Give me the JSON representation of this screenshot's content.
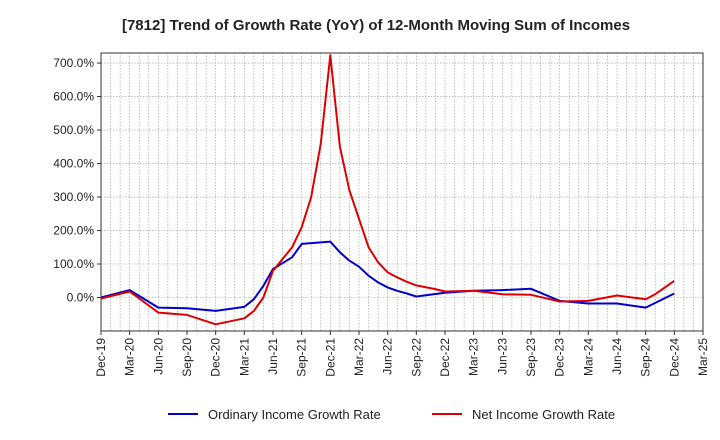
{
  "chart_data": {
    "type": "line",
    "title": "[7812]  Trend of Growth Rate (YoY) of 12-Month Moving Sum of Incomes",
    "xlabel": "",
    "ylabel": "",
    "x_ticks": [
      "Dec-19",
      "Mar-20",
      "Jun-20",
      "Sep-20",
      "Dec-20",
      "Mar-21",
      "Jun-21",
      "Sep-21",
      "Dec-21",
      "Mar-22",
      "Jun-22",
      "Sep-22",
      "Dec-22",
      "Mar-23",
      "Jun-23",
      "Sep-23",
      "Dec-23",
      "Mar-24",
      "Jun-24",
      "Sep-24",
      "Dec-24",
      "Mar-25"
    ],
    "y_ticks": [
      0,
      100,
      200,
      300,
      400,
      500,
      600,
      700
    ],
    "y_tick_labels": [
      "0.0%",
      "100.0%",
      "200.0%",
      "300.0%",
      "400.0%",
      "500.0%",
      "600.0%",
      "700.0%"
    ],
    "xlim": [
      0,
      63
    ],
    "ylim": [
      -100,
      730
    ],
    "grid": true,
    "legend_position": "bottom",
    "series": [
      {
        "name": "Ordinary Income Growth Rate",
        "color": "#0000cc",
        "points": [
          [
            0,
            0
          ],
          [
            3,
            22
          ],
          [
            6,
            -30
          ],
          [
            9,
            -32
          ],
          [
            12,
            -40
          ],
          [
            15,
            -28
          ],
          [
            16,
            -5
          ],
          [
            17,
            35
          ],
          [
            18,
            85
          ],
          [
            20,
            120
          ],
          [
            21,
            160
          ],
          [
            24,
            167
          ],
          [
            25,
            135
          ],
          [
            26,
            110
          ],
          [
            27,
            92
          ],
          [
            28,
            65
          ],
          [
            29,
            45
          ],
          [
            30,
            30
          ],
          [
            31,
            20
          ],
          [
            32,
            12
          ],
          [
            33,
            3
          ],
          [
            36,
            14
          ],
          [
            39,
            20
          ],
          [
            42,
            22
          ],
          [
            45,
            26
          ],
          [
            47,
            2
          ],
          [
            48,
            -10
          ],
          [
            51,
            -18
          ],
          [
            54,
            -18
          ],
          [
            57,
            -30
          ],
          [
            60,
            12
          ]
        ]
      },
      {
        "name": "Net Income Growth Rate",
        "color": "#dd0000",
        "points": [
          [
            0,
            -3
          ],
          [
            3,
            18
          ],
          [
            6,
            -45
          ],
          [
            9,
            -52
          ],
          [
            12,
            -80
          ],
          [
            15,
            -62
          ],
          [
            16,
            -40
          ],
          [
            17,
            0
          ],
          [
            18,
            80
          ],
          [
            20,
            150
          ],
          [
            21,
            210
          ],
          [
            22,
            300
          ],
          [
            23,
            460
          ],
          [
            24,
            723
          ],
          [
            25,
            450
          ],
          [
            26,
            320
          ],
          [
            27,
            235
          ],
          [
            28,
            150
          ],
          [
            29,
            105
          ],
          [
            30,
            75
          ],
          [
            31,
            60
          ],
          [
            32,
            47
          ],
          [
            33,
            36
          ],
          [
            35,
            25
          ],
          [
            36,
            18
          ],
          [
            39,
            20
          ],
          [
            42,
            10
          ],
          [
            45,
            8
          ],
          [
            48,
            -12
          ],
          [
            51,
            -10
          ],
          [
            54,
            6
          ],
          [
            57,
            -5
          ],
          [
            58,
            10
          ],
          [
            59,
            30
          ],
          [
            60,
            50
          ]
        ]
      }
    ]
  }
}
